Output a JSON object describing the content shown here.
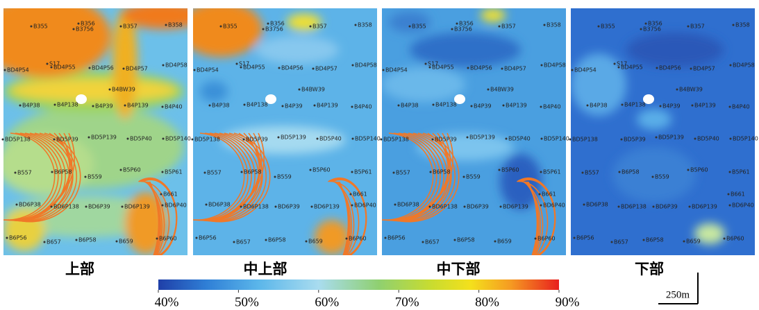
{
  "panels": [
    {
      "title": "上部"
    },
    {
      "title": "中上部"
    },
    {
      "title": "中下部"
    },
    {
      "title": "下部"
    }
  ],
  "wells": [
    "B355",
    "B356",
    "B3756",
    "B357",
    "B358",
    "S17",
    "BD4P54",
    "BD4P55",
    "BD4P56",
    "BD4P57",
    "BD4P58",
    "B4BW39",
    "B4P38",
    "B4P138",
    "B4P39",
    "B4P139",
    "B4P40",
    "BD5P138",
    "BD5P39",
    "BD5P139",
    "BD5P40",
    "BD5P140",
    "B557",
    "B6P58",
    "B559",
    "B5P60",
    "B5P61",
    "B661",
    "BD6P38",
    "BD6P138",
    "BD6P39",
    "BD6P139",
    "BD6P40",
    "B6P56",
    "B657",
    "B6P58",
    "B659",
    "B6P60"
  ],
  "colorbar": {
    "range": [
      40,
      90
    ],
    "ticks": [
      {
        "value": 40,
        "label": "40%"
      },
      {
        "value": 50,
        "label": "50%"
      },
      {
        "value": 60,
        "label": "60%"
      },
      {
        "value": 70,
        "label": "70%"
      },
      {
        "value": 80,
        "label": "80%"
      },
      {
        "value": 90,
        "label": "90%"
      }
    ]
  },
  "scale_bar": {
    "label": "250m"
  }
}
